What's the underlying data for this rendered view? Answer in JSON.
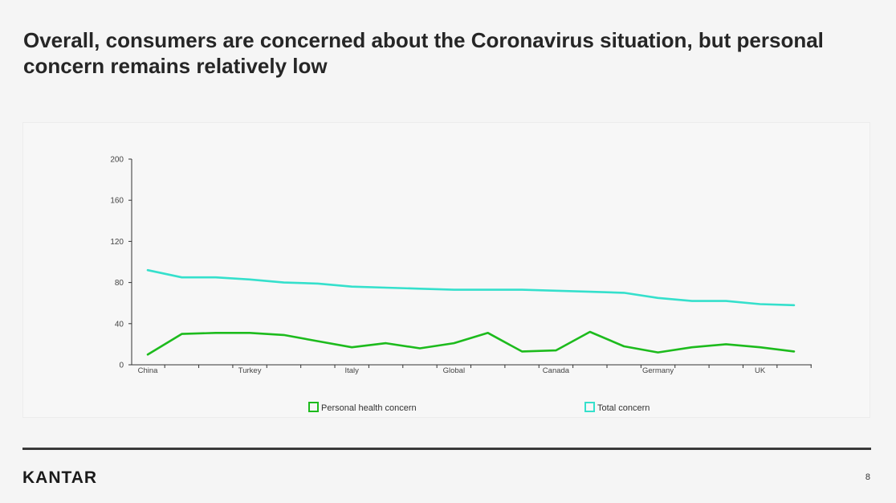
{
  "slide": {
    "title": "Overall, consumers are concerned about the Coronavirus situation, but personal concern remains relatively low",
    "page_number": "8",
    "brand": "KANTAR"
  },
  "colors": {
    "personal": "#1dbb1d",
    "total": "#35e0cc",
    "axis": "#333333"
  },
  "chart_data": {
    "type": "line",
    "title": "",
    "xlabel": "",
    "ylabel": "",
    "ylim": [
      0,
      200
    ],
    "yticks": [
      0,
      40,
      80,
      120,
      160,
      200
    ],
    "x_tick_labels": [
      {
        "index": 0,
        "label": "China"
      },
      {
        "index": 3,
        "label": "Turkey"
      },
      {
        "index": 6,
        "label": "Italy"
      },
      {
        "index": 9,
        "label": "Global"
      },
      {
        "index": 12,
        "label": "Canada"
      },
      {
        "index": 15,
        "label": "Germany"
      },
      {
        "index": 18,
        "label": "UK"
      }
    ],
    "point_count": 20,
    "grid": false,
    "legend_position": "bottom",
    "series": [
      {
        "name": "Personal health concern",
        "color": "#1dbb1d",
        "values": [
          10,
          30,
          31,
          31,
          29,
          23,
          17,
          21,
          16,
          21,
          31,
          13,
          14,
          32,
          18,
          12,
          17,
          20,
          17,
          13
        ]
      },
      {
        "name": "Total concern",
        "color": "#35e0cc",
        "values": [
          92,
          85,
          85,
          83,
          80,
          79,
          76,
          75,
          74,
          73,
          73,
          73,
          72,
          71,
          70,
          65,
          62,
          62,
          59,
          58
        ]
      }
    ]
  }
}
